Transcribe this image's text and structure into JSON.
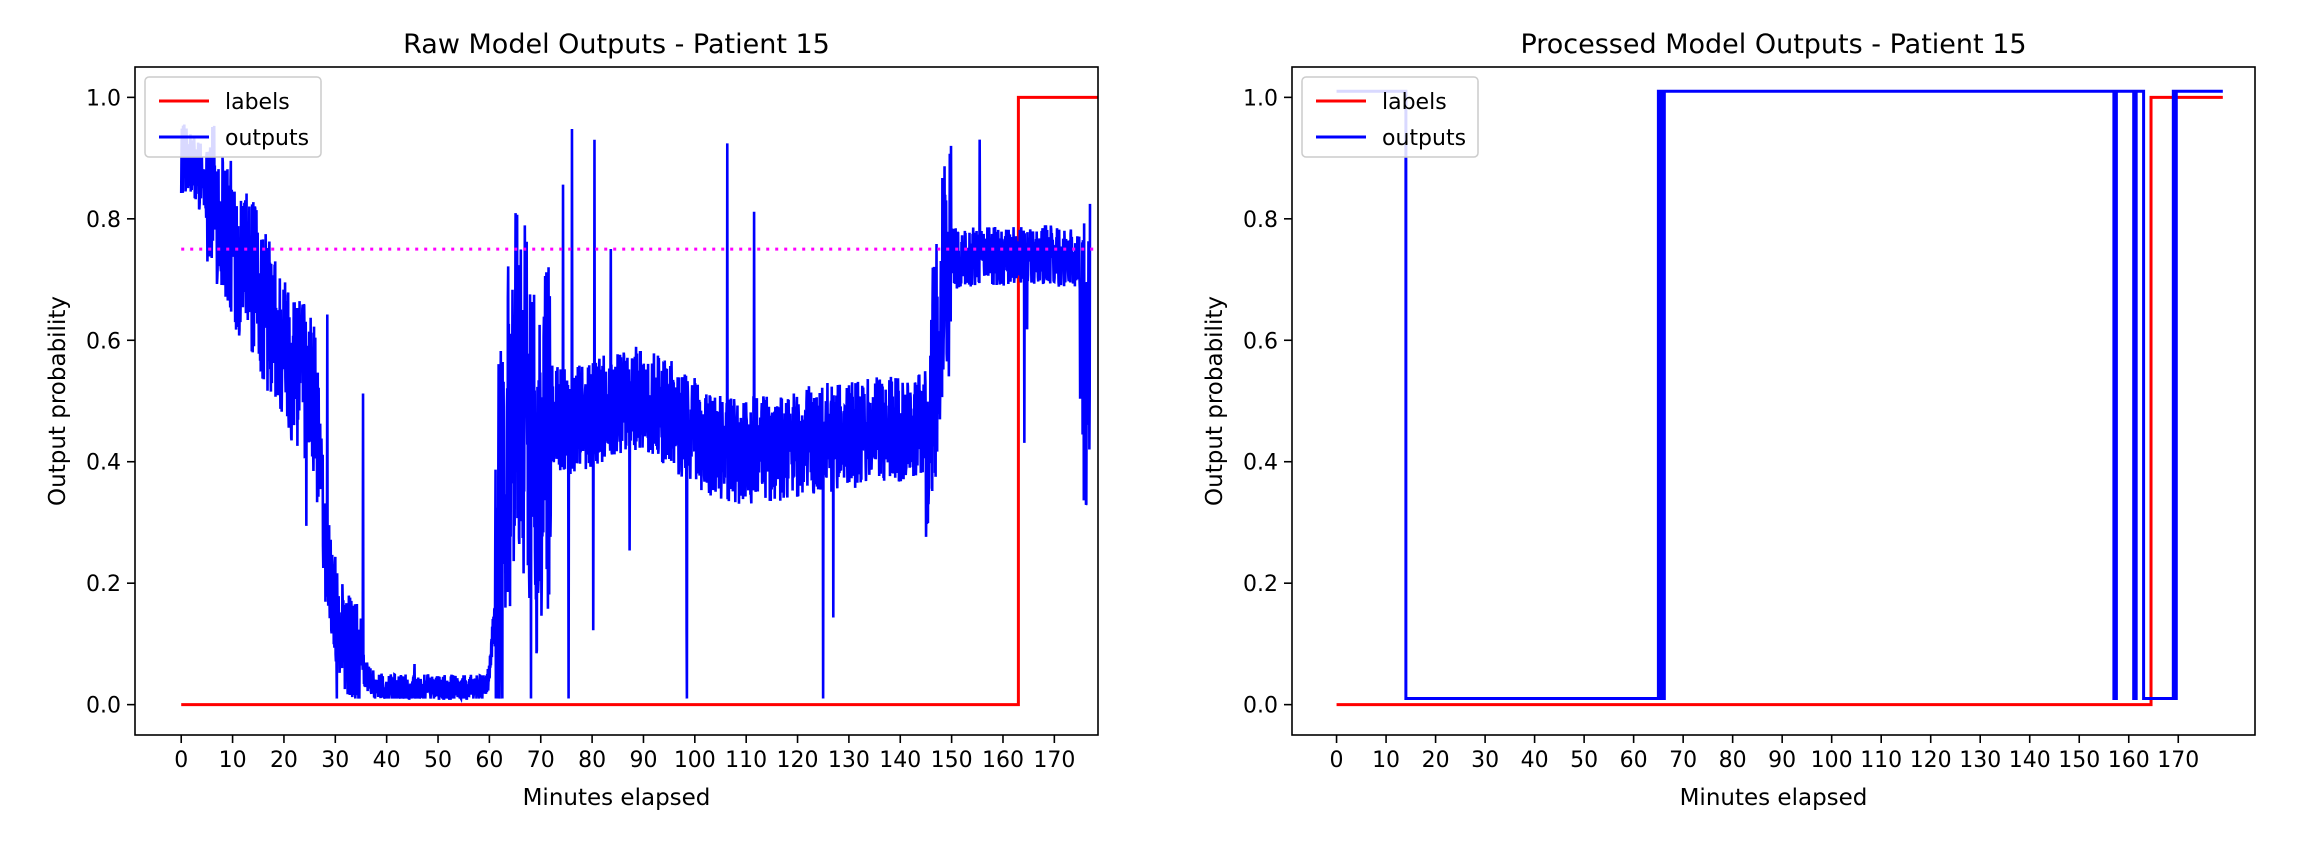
{
  "chart_data": [
    {
      "type": "line",
      "title": "Raw Model Outputs - Patient 15",
      "xlabel": "Minutes elapsed",
      "ylabel": "Output probability",
      "xlim": [
        -9,
        178.5
      ],
      "ylim": [
        -0.05,
        1.05
      ],
      "xticks": [
        0,
        10,
        20,
        30,
        40,
        50,
        60,
        70,
        80,
        90,
        100,
        110,
        120,
        130,
        140,
        150,
        160,
        170
      ],
      "yticks": [
        "0.0",
        "0.2",
        "0.4",
        "0.6",
        "0.8",
        "1.0"
      ],
      "legend": {
        "placement": "top-left",
        "entries": [
          "labels",
          "outputs"
        ]
      },
      "threshold": {
        "y": 0.75,
        "style": "dotted",
        "color": "#ff00ff"
      },
      "series": [
        {
          "name": "labels",
          "color": "#ff0000",
          "x": [
            0,
            163,
            163,
            179
          ],
          "y": [
            0,
            0,
            1,
            1
          ]
        },
        {
          "name": "outputs",
          "color": "#0000ff",
          "noisy": true,
          "x": [
            0,
            3,
            5,
            8,
            10,
            12,
            14,
            16,
            18,
            20,
            22,
            24,
            26,
            27,
            28,
            30,
            32,
            34,
            36,
            38,
            40,
            45,
            50,
            55,
            58,
            60,
            62,
            63,
            65,
            67,
            69,
            70,
            71,
            73,
            75,
            80,
            85,
            90,
            95,
            100,
            105,
            110,
            115,
            120,
            125,
            130,
            135,
            140,
            145,
            147,
            148,
            149,
            150,
            152,
            155,
            160,
            165,
            170,
            175,
            176,
            177
          ],
          "y": [
            0.9,
            0.88,
            0.86,
            0.8,
            0.76,
            0.72,
            0.7,
            0.66,
            0.62,
            0.58,
            0.56,
            0.53,
            0.5,
            0.4,
            0.26,
            0.16,
            0.1,
            0.08,
            0.05,
            0.03,
            0.025,
            0.025,
            0.025,
            0.025,
            0.025,
            0.04,
            0.3,
            0.42,
            0.55,
            0.5,
            0.38,
            0.34,
            0.45,
            0.48,
            0.46,
            0.48,
            0.5,
            0.5,
            0.48,
            0.45,
            0.42,
            0.42,
            0.42,
            0.43,
            0.44,
            0.44,
            0.45,
            0.45,
            0.46,
            0.55,
            0.7,
            0.73,
            0.74,
            0.73,
            0.74,
            0.74,
            0.74,
            0.74,
            0.73,
            0.5,
            0.6
          ]
        }
      ]
    },
    {
      "type": "line",
      "title": "Processed Model Outputs - Patient 15",
      "xlabel": "Minutes elapsed",
      "ylabel": "Output probability",
      "xlim": [
        -9,
        185.5
      ],
      "ylim": [
        -0.05,
        1.05
      ],
      "xticks": [
        0,
        10,
        20,
        30,
        40,
        50,
        60,
        70,
        80,
        90,
        100,
        110,
        120,
        130,
        140,
        150,
        160,
        170
      ],
      "yticks": [
        "0.0",
        "0.2",
        "0.4",
        "0.6",
        "0.8",
        "1.0"
      ],
      "legend": {
        "placement": "top-left",
        "entries": [
          "labels",
          "outputs"
        ]
      },
      "series": [
        {
          "name": "labels",
          "color": "#ff0000",
          "x": [
            0,
            164.5,
            164.5,
            179
          ],
          "y": [
            0,
            0,
            1,
            1
          ]
        },
        {
          "name": "outputs",
          "color": "#0000ff",
          "x": [
            0,
            14,
            14,
            65,
            65,
            65.3,
            65.3,
            65.6,
            65.6,
            65.9,
            65.9,
            66.2,
            66.2,
            146,
            146,
            157,
            157,
            157.5,
            157.5,
            161,
            161,
            161.5,
            161.5,
            163,
            163,
            169,
            169,
            169.3,
            169.3,
            169.6,
            169.6,
            169.9,
            169.9,
            179
          ],
          "y": [
            1.01,
            1.01,
            0.01,
            0.01,
            1.01,
            1.01,
            0.01,
            0.01,
            1.01,
            1.01,
            0.01,
            0.01,
            1.01,
            1.01,
            1.01,
            1.01,
            0.01,
            0.01,
            1.01,
            1.01,
            0.01,
            0.01,
            1.01,
            1.01,
            0.01,
            0.01,
            1.01,
            1.01,
            0.01,
            0.01,
            1.01,
            1.01,
            1.01,
            1.01
          ]
        }
      ]
    }
  ]
}
